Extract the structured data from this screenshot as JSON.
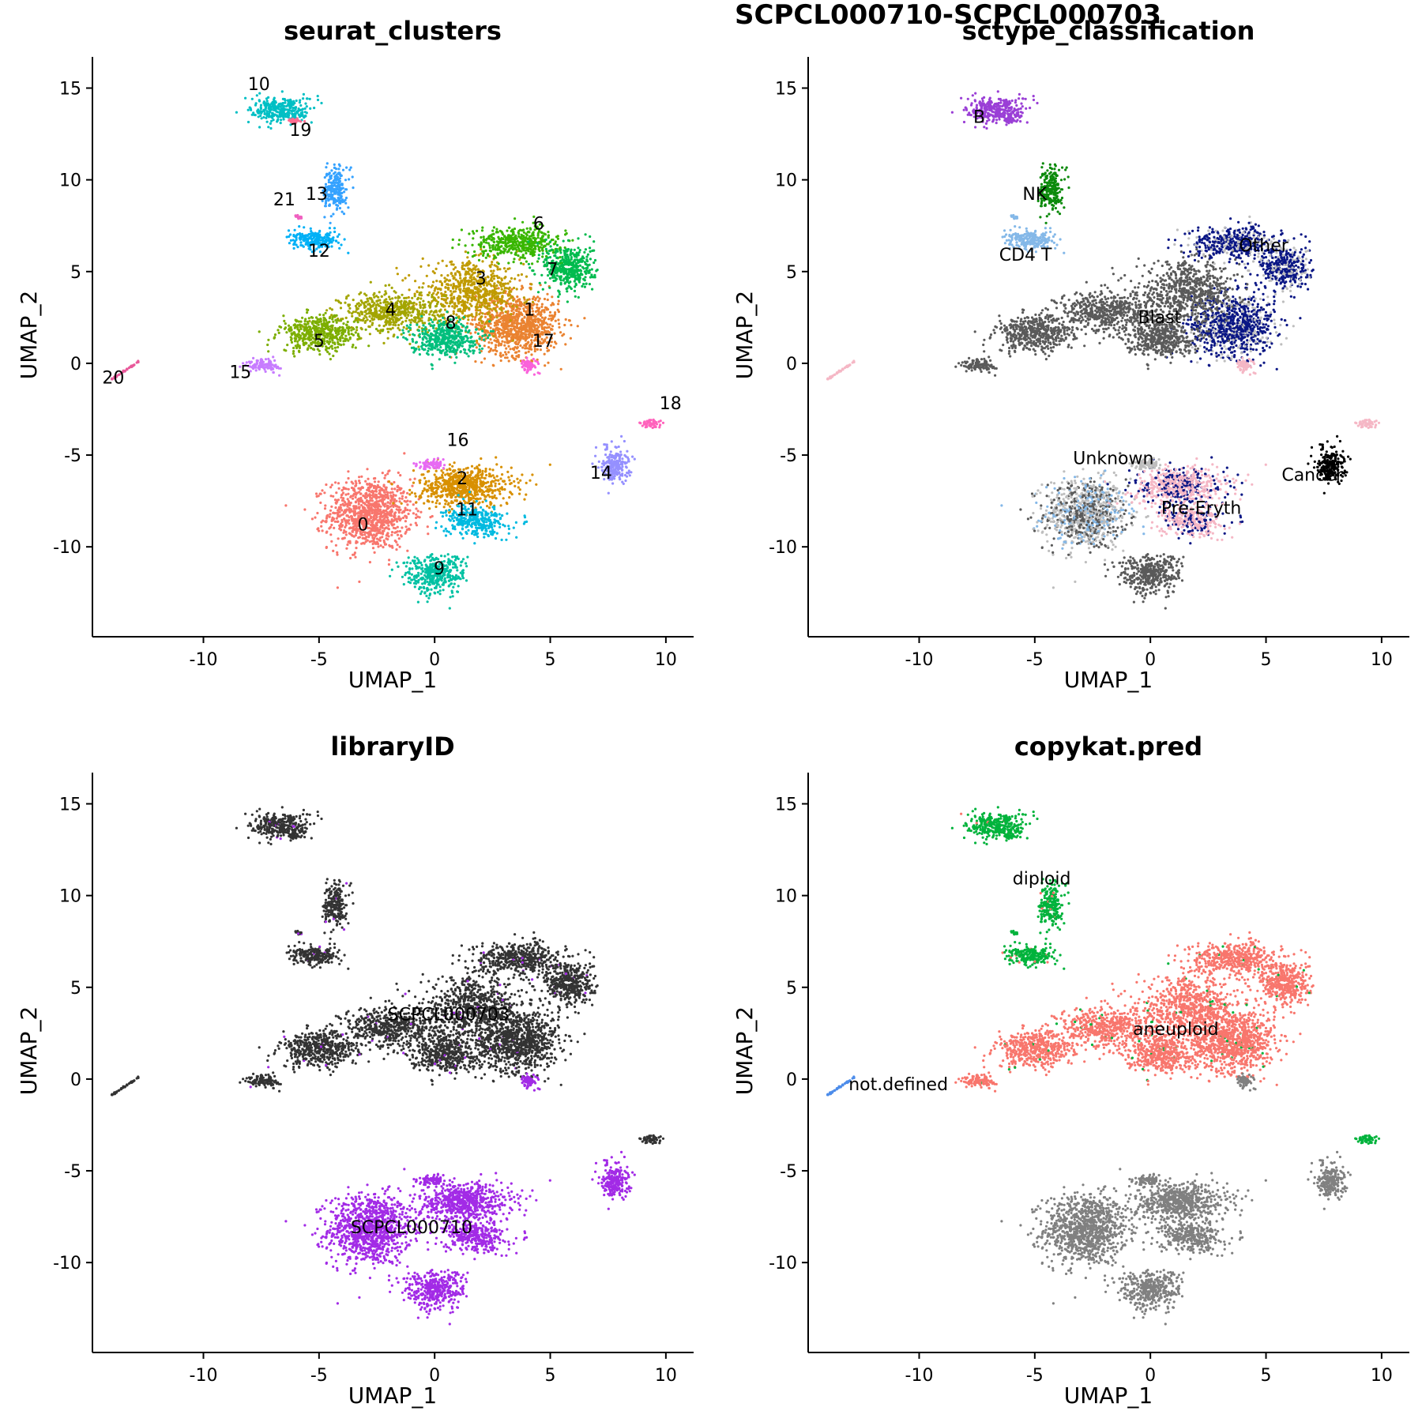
{
  "figure": {
    "title": "SCPCL000710-SCPCL000703"
  },
  "palette": {
    "cluster_colors": [
      "#F8766D",
      "#EA8331",
      "#D89000",
      "#C09B00",
      "#A3A500",
      "#7CAE00",
      "#39B600",
      "#00BB4E",
      "#00BF7D",
      "#00C1A3",
      "#00BFC4",
      "#00BAE0",
      "#00B0F6",
      "#35A2FF",
      "#9590FF",
      "#C77CFF",
      "#E76BF3",
      "#FA62DB",
      "#FF62BC",
      "#FF6C91",
      "#E8599A",
      "#F060C0"
    ],
    "sctype_colors": {
      "B": "#9A3FD6",
      "NK": "#0C8A0C",
      "CD4 T": "#84B8E8",
      "Other": "#0B1785",
      "Blast": "#5A5A5A",
      "Unknown": "#BEBEBE",
      "Pre-Eryth": "#F5B7C5",
      "Cancer": "#000000"
    },
    "library_colors": {
      "SCPCL000703": "#333333",
      "SCPCL000710": "#A22BE6"
    },
    "copykat_colors": {
      "diploid": "#00B33C",
      "aneuploid": "#F8766D",
      "not.defined": "#4C8CEA",
      "unknown": "#808080"
    }
  },
  "chart_data": [
    {
      "type": "scatter",
      "title": "seurat_clusters",
      "xlabel": "UMAP_1",
      "ylabel": "UMAP_2",
      "xlim": [
        -14.8,
        11.2
      ],
      "ylim": [
        -14.9,
        16.7
      ],
      "xticks": [
        -10,
        -5,
        0,
        5,
        10
      ],
      "yticks": [
        -10,
        -5,
        0,
        5,
        10,
        15
      ],
      "xtick_labels": [
        "-10",
        "-5",
        "0",
        "5",
        "10"
      ],
      "ytick_labels": [
        "-10",
        "-5",
        "0",
        "5",
        "10",
        "15"
      ],
      "legend": "none",
      "group_labels": [
        {
          "text": "0",
          "x": -3.1,
          "y": -9.1
        },
        {
          "text": "1",
          "x": 4.1,
          "y": 2.6
        },
        {
          "text": "2",
          "x": 1.2,
          "y": -6.6
        },
        {
          "text": "3",
          "x": 2.0,
          "y": 4.3
        },
        {
          "text": "4",
          "x": -1.9,
          "y": 2.6
        },
        {
          "text": "5",
          "x": -5.0,
          "y": 0.9
        },
        {
          "text": "6",
          "x": 4.5,
          "y": 7.3
        },
        {
          "text": "7",
          "x": 5.1,
          "y": 4.8
        },
        {
          "text": "8",
          "x": 0.7,
          "y": 1.9
        },
        {
          "text": "9",
          "x": 0.2,
          "y": -11.5
        },
        {
          "text": "10",
          "x": -7.6,
          "y": 14.9
        },
        {
          "text": "11",
          "x": 1.4,
          "y": -8.3
        },
        {
          "text": "12",
          "x": -5.0,
          "y": 5.8
        },
        {
          "text": "13",
          "x": -5.1,
          "y": 8.9
        },
        {
          "text": "14",
          "x": 7.2,
          "y": -6.3
        },
        {
          "text": "15",
          "x": -8.4,
          "y": -0.8
        },
        {
          "text": "16",
          "x": 1.0,
          "y": -4.5
        },
        {
          "text": "17",
          "x": 4.7,
          "y": 0.9
        },
        {
          "text": "18",
          "x": 10.2,
          "y": -2.5
        },
        {
          "text": "19",
          "x": -5.8,
          "y": 12.4
        },
        {
          "text": "20",
          "x": -13.9,
          "y": -1.1
        },
        {
          "text": "21",
          "x": -6.5,
          "y": 8.6
        }
      ]
    },
    {
      "type": "scatter",
      "title": "sctype_classification",
      "xlabel": "UMAP_1",
      "ylabel": "UMAP_2",
      "xlim": [
        -14.8,
        11.2
      ],
      "ylim": [
        -14.9,
        16.7
      ],
      "xticks": [
        -10,
        -5,
        0,
        5,
        10
      ],
      "yticks": [
        -10,
        -5,
        0,
        5,
        10,
        15
      ],
      "xtick_labels": [
        "-10",
        "-5",
        "0",
        "5",
        "10"
      ],
      "ytick_labels": [
        "-10",
        "-5",
        "0",
        "5",
        "10",
        "15"
      ],
      "legend": "none",
      "group_labels": [
        {
          "text": "B",
          "x": -7.4,
          "y": 13.1
        },
        {
          "text": "NK",
          "x": -5.0,
          "y": 8.9
        },
        {
          "text": "CD4 T",
          "x": -5.4,
          "y": 5.6
        },
        {
          "text": "Other",
          "x": 4.9,
          "y": 6.1
        },
        {
          "text": "Blast",
          "x": 0.4,
          "y": 2.2
        },
        {
          "text": "Unknown",
          "x": -1.6,
          "y": -5.5
        },
        {
          "text": "Pre-Eryth",
          "x": 2.2,
          "y": -8.2
        },
        {
          "text": "Cancer",
          "x": 7.0,
          "y": -6.4
        }
      ]
    },
    {
      "type": "scatter",
      "title": "libraryID",
      "xlabel": "UMAP_1",
      "ylabel": "UMAP_2",
      "xlim": [
        -14.8,
        11.2
      ],
      "ylim": [
        -14.9,
        16.7
      ],
      "xticks": [
        -10,
        -5,
        0,
        5,
        10
      ],
      "yticks": [
        -10,
        -5,
        0,
        5,
        10,
        15
      ],
      "xtick_labels": [
        "-10",
        "-5",
        "0",
        "5",
        "10"
      ],
      "ytick_labels": [
        "-10",
        "-5",
        "0",
        "5",
        "10",
        "15"
      ],
      "legend": "none",
      "group_labels": [
        {
          "text": "SCPCL000703",
          "x": 0.6,
          "y": 3.2
        },
        {
          "text": "SCPCL000710",
          "x": -1.0,
          "y": -8.4
        }
      ]
    },
    {
      "type": "scatter",
      "title": "copykat.pred",
      "xlabel": "UMAP_1",
      "ylabel": "UMAP_2",
      "xlim": [
        -14.8,
        11.2
      ],
      "ylim": [
        -14.9,
        16.7
      ],
      "xticks": [
        -10,
        -5,
        0,
        5,
        10
      ],
      "yticks": [
        -10,
        -5,
        0,
        5,
        10,
        15
      ],
      "xtick_labels": [
        "-10",
        "-5",
        "0",
        "5",
        "10"
      ],
      "ytick_labels": [
        "-10",
        "-5",
        "0",
        "5",
        "10",
        "15"
      ],
      "legend": "none",
      "group_labels": [
        {
          "text": "diploid",
          "x": -4.7,
          "y": 10.6
        },
        {
          "text": "aneuploid",
          "x": 1.1,
          "y": 2.4
        },
        {
          "text": "not.defined",
          "x": -10.9,
          "y": -0.6
        }
      ]
    }
  ]
}
